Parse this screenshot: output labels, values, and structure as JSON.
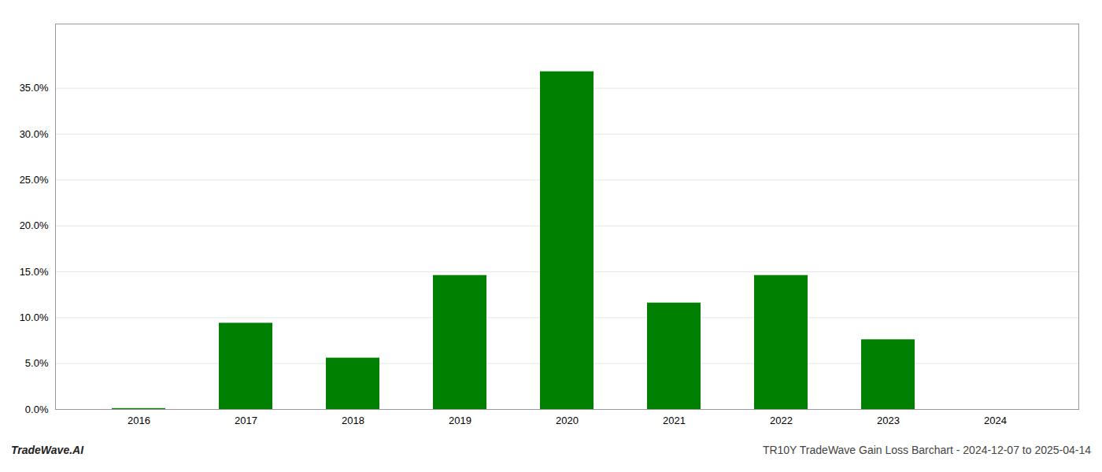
{
  "chart_data": {
    "type": "bar",
    "categories": [
      "2016",
      "2017",
      "2018",
      "2019",
      "2020",
      "2021",
      "2022",
      "2023",
      "2024"
    ],
    "values": [
      0.001,
      0.094,
      0.056,
      0.146,
      0.368,
      0.116,
      0.146,
      0.076,
      0.0
    ],
    "color": "#008000",
    "ylim": [
      0,
      0.42
    ],
    "yticks": [
      {
        "value": 0.0,
        "label": "0.0%"
      },
      {
        "value": 0.05,
        "label": "5.0%"
      },
      {
        "value": 0.1,
        "label": "10.0%"
      },
      {
        "value": 0.15,
        "label": "15.0%"
      },
      {
        "value": 0.2,
        "label": "20.0%"
      },
      {
        "value": 0.25,
        "label": "25.0%"
      },
      {
        "value": 0.3,
        "label": "30.0%"
      },
      {
        "value": 0.35,
        "label": "35.0%"
      }
    ],
    "grid": true,
    "annotations": [
      "TradeWave.AI",
      "TR10Y TradeWave Gain Loss Barchart - 2024-12-07 to 2025-04-14"
    ]
  }
}
